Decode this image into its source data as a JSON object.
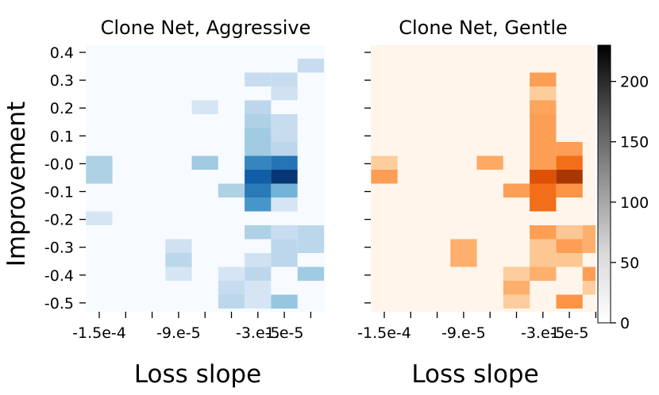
{
  "chart_data": [
    {
      "type": "heatmap",
      "title": "Clone Net, Aggressive",
      "xlabel": "Loss slope",
      "ylabel": "Improvement",
      "colormap": "Blues",
      "x_ticks": [
        "-1.5e-4",
        "",
        "",
        "-9.e-5",
        "",
        "",
        "-3.e-5",
        "1.e-5",
        ""
      ],
      "y_ticks": [
        "0.4",
        "0.3",
        "0.2",
        "0.1",
        "-0.0",
        "-0.1",
        "-0.2",
        "-0.3",
        "-0.4",
        "-0.5"
      ],
      "vmax": 230,
      "cells": [
        {
          "col": 8,
          "row": 1,
          "value": 55
        },
        {
          "col": 6,
          "row": 2,
          "value": 55
        },
        {
          "col": 7,
          "row": 2,
          "value": 55
        },
        {
          "col": 7,
          "row": 3,
          "value": 45
        },
        {
          "col": 4,
          "row": 4,
          "value": 40
        },
        {
          "col": 6,
          "row": 4,
          "value": 65
        },
        {
          "col": 6,
          "row": 5,
          "value": 75
        },
        {
          "col": 7,
          "row": 5,
          "value": 55
        },
        {
          "col": 6,
          "row": 6,
          "value": 85
        },
        {
          "col": 7,
          "row": 6,
          "value": 55
        },
        {
          "col": 6,
          "row": 7,
          "value": 85
        },
        {
          "col": 7,
          "row": 7,
          "value": 65
        },
        {
          "col": 0,
          "row": 8,
          "value": 75
        },
        {
          "col": 4,
          "row": 8,
          "value": 85
        },
        {
          "col": 6,
          "row": 8,
          "value": 155
        },
        {
          "col": 7,
          "row": 8,
          "value": 170
        },
        {
          "col": 0,
          "row": 9,
          "value": 75
        },
        {
          "col": 6,
          "row": 9,
          "value": 190
        },
        {
          "col": 7,
          "row": 9,
          "value": 225
        },
        {
          "col": 5,
          "row": 10,
          "value": 75
        },
        {
          "col": 6,
          "row": 10,
          "value": 165
        },
        {
          "col": 7,
          "row": 10,
          "value": 110
        },
        {
          "col": 6,
          "row": 11,
          "value": 140
        },
        {
          "col": 7,
          "row": 11,
          "value": 40
        },
        {
          "col": 0,
          "row": 12,
          "value": 40
        },
        {
          "col": 6,
          "row": 13,
          "value": 75
        },
        {
          "col": 7,
          "row": 13,
          "value": 55
        },
        {
          "col": 8,
          "row": 13,
          "value": 65
        },
        {
          "col": 3,
          "row": 14,
          "value": 45
        },
        {
          "col": 7,
          "row": 14,
          "value": 65
        },
        {
          "col": 8,
          "row": 14,
          "value": 65
        },
        {
          "col": 3,
          "row": 15,
          "value": 65
        },
        {
          "col": 6,
          "row": 15,
          "value": 45
        },
        {
          "col": 7,
          "row": 15,
          "value": 65
        },
        {
          "col": 3,
          "row": 16,
          "value": 40
        },
        {
          "col": 5,
          "row": 16,
          "value": 40
        },
        {
          "col": 6,
          "row": 16,
          "value": 65
        },
        {
          "col": 8,
          "row": 16,
          "value": 85
        },
        {
          "col": 5,
          "row": 17,
          "value": 55
        },
        {
          "col": 6,
          "row": 17,
          "value": 40
        },
        {
          "col": 5,
          "row": 18,
          "value": 65
        },
        {
          "col": 6,
          "row": 18,
          "value": 40
        },
        {
          "col": 7,
          "row": 18,
          "value": 90
        }
      ]
    },
    {
      "type": "heatmap",
      "title": "Clone Net, Gentle",
      "xlabel": "Loss slope",
      "ylabel": "",
      "colormap": "Oranges",
      "x_ticks": [
        "-1.5e-4",
        "",
        "",
        "-9.e-5",
        "",
        "",
        "-3.e-5",
        "1.e-5",
        ""
      ],
      "y_ticks": [
        "",
        "",
        "",
        "",
        "",
        "",
        "",
        "",
        "",
        ""
      ],
      "vmax": 230,
      "cells": [
        {
          "col": 6,
          "row": 2,
          "value": 100
        },
        {
          "col": 6,
          "row": 3,
          "value": 60
        },
        {
          "col": 6,
          "row": 4,
          "value": 95
        },
        {
          "col": 6,
          "row": 5,
          "value": 100
        },
        {
          "col": 6,
          "row": 6,
          "value": 100
        },
        {
          "col": 6,
          "row": 7,
          "value": 100
        },
        {
          "col": 7,
          "row": 7,
          "value": 100
        },
        {
          "col": 0,
          "row": 8,
          "value": 60
        },
        {
          "col": 4,
          "row": 8,
          "value": 90
        },
        {
          "col": 6,
          "row": 8,
          "value": 100
        },
        {
          "col": 7,
          "row": 8,
          "value": 140
        },
        {
          "col": 0,
          "row": 9,
          "value": 100
        },
        {
          "col": 6,
          "row": 9,
          "value": 165
        },
        {
          "col": 7,
          "row": 9,
          "value": 200
        },
        {
          "col": 5,
          "row": 10,
          "value": 100
        },
        {
          "col": 6,
          "row": 10,
          "value": 140
        },
        {
          "col": 7,
          "row": 10,
          "value": 110
        },
        {
          "col": 6,
          "row": 11,
          "value": 140
        },
        {
          "col": 6,
          "row": 13,
          "value": 100
        },
        {
          "col": 7,
          "row": 13,
          "value": 65
        },
        {
          "col": 8,
          "row": 13,
          "value": 85
        },
        {
          "col": 3,
          "row": 14,
          "value": 85
        },
        {
          "col": 6,
          "row": 14,
          "value": 65
        },
        {
          "col": 7,
          "row": 14,
          "value": 100
        },
        {
          "col": 8,
          "row": 14,
          "value": 85
        },
        {
          "col": 3,
          "row": 15,
          "value": 85
        },
        {
          "col": 6,
          "row": 15,
          "value": 65
        },
        {
          "col": 7,
          "row": 15,
          "value": 65
        },
        {
          "col": 5,
          "row": 16,
          "value": 60
        },
        {
          "col": 6,
          "row": 16,
          "value": 85
        },
        {
          "col": 8,
          "row": 16,
          "value": 100
        },
        {
          "col": 5,
          "row": 17,
          "value": 85
        },
        {
          "col": 8,
          "row": 17,
          "value": 60
        },
        {
          "col": 5,
          "row": 18,
          "value": 60
        },
        {
          "col": 7,
          "row": 18,
          "value": 110
        }
      ]
    }
  ],
  "colorbar": {
    "colormap": "Greys",
    "min": 0,
    "max": 230,
    "tick_labels": [
      "0",
      "50",
      "100",
      "150",
      "200"
    ]
  }
}
